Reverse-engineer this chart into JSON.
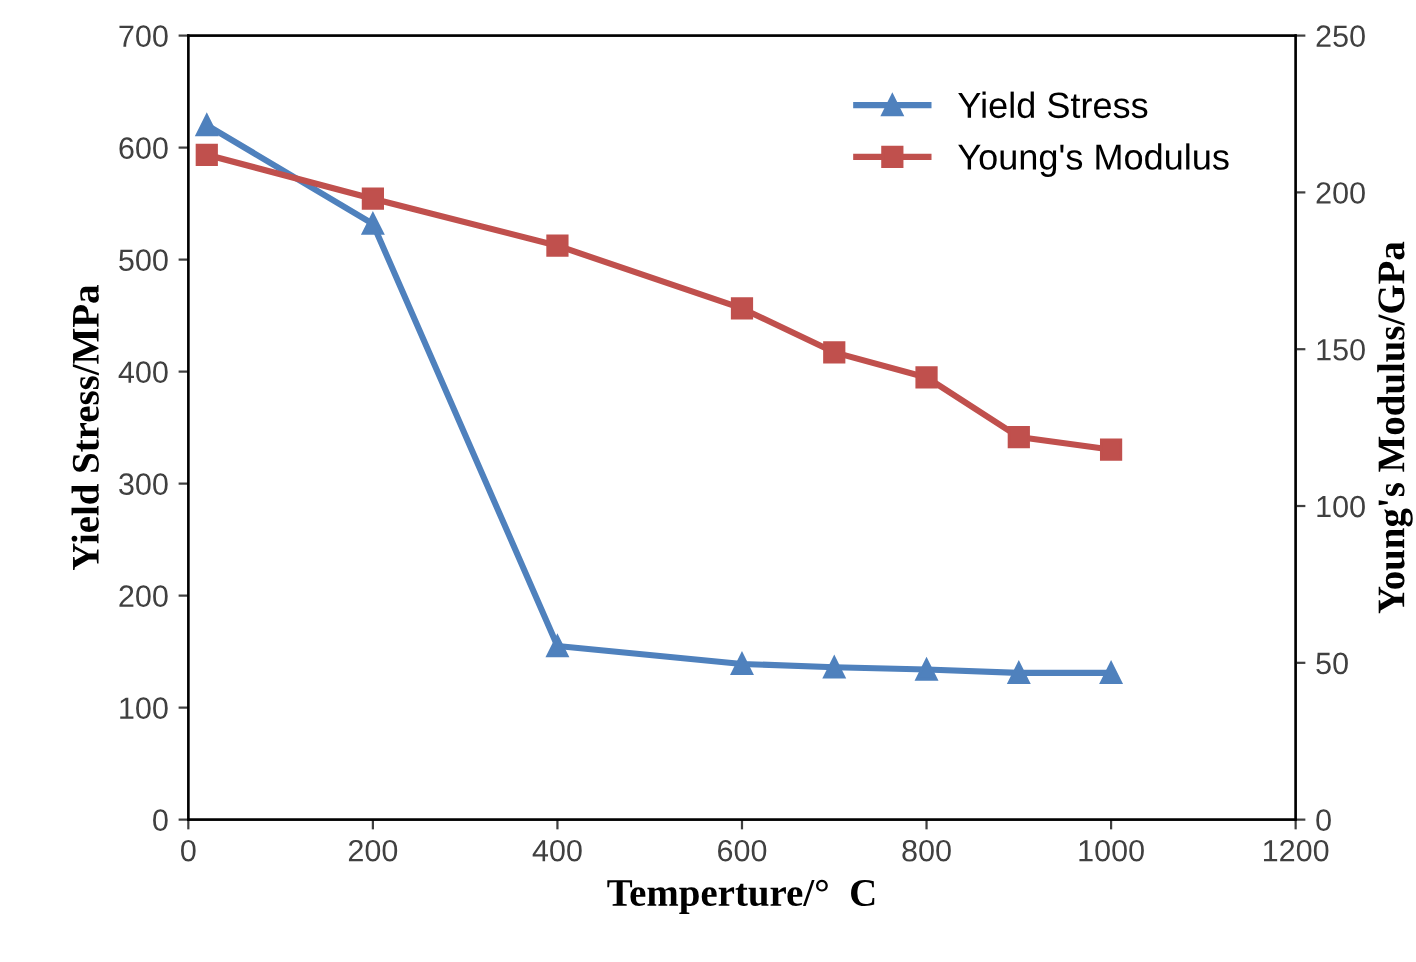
{
  "chart_data": {
    "type": "line",
    "xlabel": "Temperture/°  C",
    "ylabel": "Yield Stress/MPa",
    "y2label": "Young's Modulus/GPa",
    "x": [
      20,
      200,
      400,
      600,
      700,
      800,
      900,
      1000
    ],
    "series": [
      {
        "name": "Yield Stress",
        "color": "#4f81bd",
        "marker": "triangle",
        "values": [
          620,
          532,
          155,
          139,
          136,
          134,
          131,
          131
        ]
      },
      {
        "name": "Young's Modulus",
        "color": "#c0504d",
        "marker": "square",
        "axis": "y2",
        "values": [
          212,
          198,
          183,
          163,
          149,
          141,
          122,
          118
        ]
      }
    ],
    "xlim": [
      0,
      1200
    ],
    "xticks": [
      0,
      200,
      400,
      600,
      800,
      1000,
      1200
    ],
    "ylim": [
      0,
      700
    ],
    "yticks": [
      0,
      100,
      200,
      300,
      400,
      500,
      600,
      700
    ],
    "y2lim": [
      0,
      250
    ],
    "y2ticks": [
      0,
      50,
      100,
      150,
      200,
      250
    ],
    "grid": false,
    "legend": "top right",
    "line_style": "solid"
  }
}
